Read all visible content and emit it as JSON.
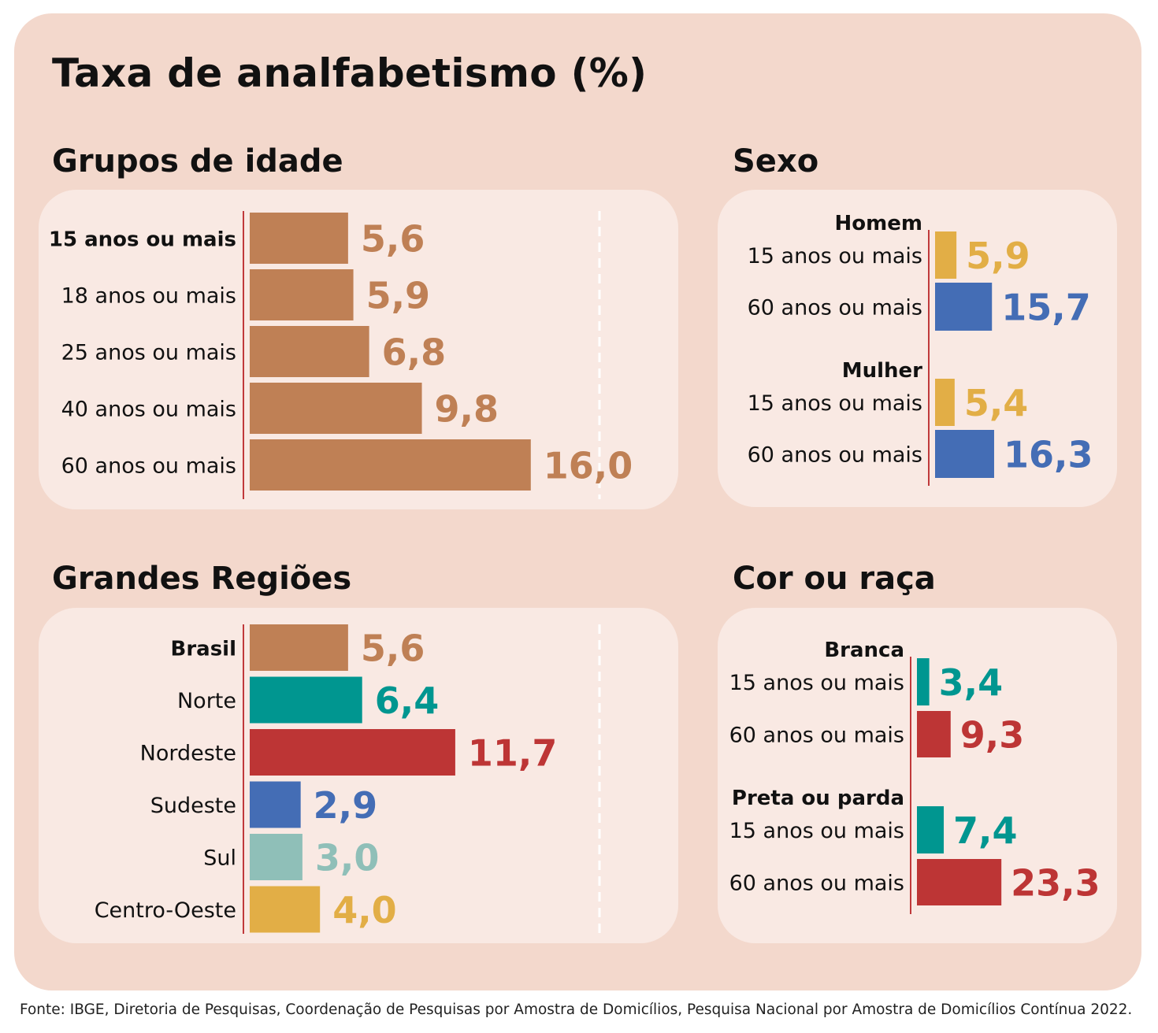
{
  "title": "Taxa de analfabetismo (%)",
  "source": "Fonte: IBGE, Diretoria de Pesquisas, Coordenação de Pesquisas por Amostra de Domicílios, Pesquisa Nacional por Amostra de Domicílios Contínua 2022.",
  "colors": {
    "brown": "#bf8055",
    "teal": "#009690",
    "red": "#bd3535",
    "blue": "#446db5",
    "lightteal": "#8fbfb8",
    "yellow": "#e2ae46",
    "axis": "#c0393b"
  },
  "chart_data": [
    {
      "id": "age",
      "type": "bar",
      "title": "Grupos de idade",
      "categories": [
        "15 anos ou mais",
        "18 anos ou mais",
        "25 anos ou mais",
        "40 anos ou mais",
        "60 anos ou mais"
      ],
      "values": [
        5.6,
        5.9,
        6.8,
        9.8,
        16.0
      ],
      "labels": [
        "5,6",
        "5,9",
        "6,8",
        "9,8",
        "16,0"
      ],
      "bold_category": [
        true,
        false,
        false,
        false,
        false
      ],
      "colors": [
        "brown",
        "brown",
        "brown",
        "brown",
        "brown"
      ]
    },
    {
      "id": "sex",
      "type": "bar",
      "title": "Sexo",
      "groups": [
        {
          "name": "Homem",
          "categories": [
            "15 anos ou mais",
            "60 anos ou mais"
          ],
          "values": [
            5.9,
            15.7
          ],
          "labels": [
            "5,9",
            "15,7"
          ],
          "colors": [
            "yellow",
            "blue"
          ]
        },
        {
          "name": "Mulher",
          "categories": [
            "15 anos ou mais",
            "60 anos ou mais"
          ],
          "values": [
            5.4,
            16.3
          ],
          "labels": [
            "5,4",
            "16,3"
          ],
          "colors": [
            "yellow",
            "blue"
          ]
        }
      ]
    },
    {
      "id": "region",
      "type": "bar",
      "title": "Grandes Regiões",
      "categories": [
        "Brasil",
        "Norte",
        "Nordeste",
        "Sudeste",
        "Sul",
        "Centro-Oeste"
      ],
      "values": [
        5.6,
        6.4,
        11.7,
        2.9,
        3.0,
        4.0
      ],
      "labels": [
        "5,6",
        "6,4",
        "11,7",
        "2,9",
        "3,0",
        "4,0"
      ],
      "bold_category": [
        true,
        false,
        false,
        false,
        false,
        false
      ],
      "colors": [
        "brown",
        "teal",
        "red",
        "blue",
        "lightteal",
        "yellow"
      ]
    },
    {
      "id": "race",
      "type": "bar",
      "title": "Cor ou raça",
      "groups": [
        {
          "name": "Branca",
          "categories": [
            "15 anos ou mais",
            "60 anos ou mais"
          ],
          "values": [
            3.4,
            9.3
          ],
          "labels": [
            "3,4",
            "9,3"
          ],
          "colors": [
            "teal",
            "red"
          ]
        },
        {
          "name": "Preta ou parda",
          "categories": [
            "15 anos ou mais",
            "60 anos ou mais"
          ],
          "values": [
            7.4,
            23.3
          ],
          "labels": [
            "7,4",
            "23,3"
          ],
          "colors": [
            "teal",
            "red"
          ]
        }
      ]
    }
  ]
}
